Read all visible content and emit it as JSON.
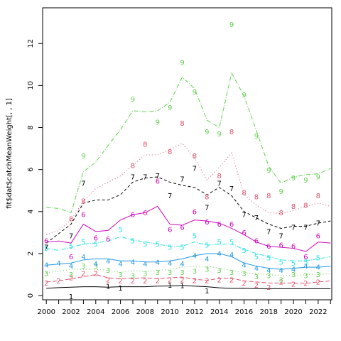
{
  "chart_data": {
    "type": "line",
    "ylabel": "fit$dat$catchMeanWeight[, , 1]",
    "xlabel": "",
    "xlim": [
      1999.7,
      2023.1
    ],
    "ylim": [
      -0.2,
      13.7
    ],
    "x_ticks": [
      2000,
      2002,
      2004,
      2006,
      2008,
      2010,
      2012,
      2014,
      2016,
      2018,
      2020,
      2022
    ],
    "x_minor_ticks": [
      2001,
      2003,
      2005,
      2007,
      2009,
      2011,
      2013,
      2015,
      2017,
      2019,
      2021,
      2023
    ],
    "y_ticks": [
      0,
      2,
      4,
      6,
      8,
      10,
      12
    ],
    "fit_x": [
      2000,
      2001,
      2002,
      2003,
      2004,
      2005,
      2006,
      2007,
      2008,
      2009,
      2010,
      2011,
      2012,
      2013,
      2014,
      2015,
      2016,
      2017,
      2018,
      2019,
      2020,
      2021,
      2022,
      2023
    ],
    "series": [
      {
        "label": "1",
        "color": "#000000",
        "dash": "",
        "fit": [
          0.35,
          0.38,
          0.4,
          0.42,
          0.42,
          0.4,
          0.42,
          0.42,
          0.42,
          0.45,
          0.46,
          0.48,
          0.45,
          0.42,
          0.37,
          0.34,
          0.35,
          0.33,
          0.33,
          0.33,
          0.33,
          0.33,
          0.33,
          0.33
        ],
        "obs_x": [
          2002,
          2005,
          2006,
          2010,
          2011,
          2013
        ],
        "obs_y": [
          -0.05,
          0.45,
          0.35,
          0.5,
          0.48,
          0.22
        ]
      },
      {
        "label": "2",
        "color": "#DF536B",
        "dash": "6,3",
        "fit": [
          0.65,
          0.7,
          0.8,
          0.9,
          1.0,
          0.85,
          0.8,
          0.82,
          0.85,
          0.8,
          0.85,
          0.88,
          0.78,
          0.72,
          0.82,
          0.82,
          0.7,
          0.65,
          0.6,
          0.6,
          0.6,
          0.58,
          0.65,
          0.7
        ],
        "obs_x": [
          2000,
          2001,
          2002,
          2003,
          2004,
          2005,
          2006,
          2007,
          2008,
          2009,
          2010,
          2011,
          2012,
          2013,
          2014,
          2015,
          2016,
          2017,
          2018,
          2019,
          2020,
          2021,
          2022
        ],
        "obs_y": [
          0.6,
          0.7,
          0.85,
          1.05,
          1.05,
          0.75,
          0.7,
          0.7,
          0.7,
          0.72,
          0.75,
          0.75,
          0.72,
          0.72,
          0.75,
          0.75,
          0.6,
          0.5,
          0.4,
          0.65,
          0.55,
          0.6,
          0.65
        ]
      },
      {
        "label": "3",
        "color": "#61D04F",
        "dash": "1,3",
        "fit": [
          1.1,
          1.15,
          1.25,
          1.25,
          1.25,
          1.2,
          1.1,
          1.2,
          1.15,
          1.2,
          1.25,
          1.35,
          1.4,
          1.4,
          1.3,
          1.2,
          1.1,
          1.05,
          1.0,
          0.95,
          0.95,
          1.0,
          1.0,
          1.05
        ],
        "obs_x": [
          2000,
          2002,
          2003,
          2004,
          2005,
          2006,
          2007,
          2008,
          2009,
          2010,
          2011,
          2012,
          2013,
          2014,
          2015,
          2016,
          2017,
          2018,
          2019,
          2020,
          2021,
          2022
        ],
        "obs_y": [
          1.05,
          1.0,
          1.4,
          1.4,
          1.2,
          1.0,
          0.95,
          1.05,
          1.1,
          1.1,
          1.1,
          1.15,
          1.25,
          1.2,
          1.1,
          1.05,
          0.9,
          0.95,
          0.75,
          1.0,
          0.95,
          1.0
        ]
      },
      {
        "label": "4",
        "color": "#2297E6",
        "dash": "",
        "fit": [
          1.45,
          1.5,
          1.55,
          1.7,
          1.75,
          1.75,
          1.65,
          1.65,
          1.6,
          1.6,
          1.65,
          1.75,
          1.9,
          2.0,
          2.0,
          1.85,
          1.55,
          1.4,
          1.3,
          1.25,
          1.3,
          1.35,
          1.35,
          1.4
        ],
        "obs_x": [
          2000,
          2001,
          2002,
          2003,
          2004,
          2005,
          2006,
          2007,
          2008,
          2009,
          2010,
          2011,
          2012,
          2013,
          2014,
          2015,
          2016,
          2017,
          2018,
          2019,
          2020,
          2021,
          2022
        ],
        "obs_y": [
          1.45,
          1.55,
          1.4,
          1.85,
          1.5,
          1.65,
          1.5,
          1.6,
          1.5,
          1.6,
          1.55,
          1.5,
          1.9,
          1.75,
          2.0,
          1.95,
          1.45,
          1.3,
          1.2,
          1.2,
          1.25,
          1.4,
          1.35
        ]
      },
      {
        "label": "5",
        "color": "#28E2E5",
        "dash": "6,2,1,2",
        "fit": [
          2.25,
          2.15,
          2.3,
          2.45,
          2.5,
          2.6,
          2.8,
          2.65,
          2.55,
          2.45,
          2.35,
          2.35,
          2.55,
          2.4,
          2.45,
          2.45,
          2.2,
          2.0,
          1.85,
          1.7,
          1.65,
          1.65,
          1.75,
          1.85
        ],
        "obs_x": [
          2000,
          2002,
          2003,
          2004,
          2006,
          2007,
          2008,
          2009,
          2010,
          2011,
          2012,
          2013,
          2014,
          2015,
          2016,
          2017,
          2018,
          2019,
          2020,
          2021,
          2022
        ],
        "obs_y": [
          2.25,
          2.35,
          2.55,
          2.45,
          3.15,
          2.6,
          2.45,
          2.45,
          2.3,
          2.3,
          2.85,
          2.4,
          2.55,
          2.55,
          2.15,
          1.85,
          1.8,
          1.6,
          1.55,
          1.6,
          1.8
        ]
      },
      {
        "label": "6",
        "color": "#CD0BBC",
        "dash": "",
        "fit": [
          2.55,
          2.6,
          2.5,
          3.4,
          3.05,
          3.1,
          3.6,
          3.85,
          3.95,
          4.25,
          3.4,
          3.35,
          3.6,
          3.55,
          3.45,
          3.2,
          2.9,
          2.55,
          2.35,
          2.3,
          2.25,
          2.1,
          2.55,
          2.5
        ],
        "obs_x": [
          2000,
          2002,
          2003,
          2004,
          2005,
          2007,
          2008,
          2009,
          2010,
          2011,
          2012,
          2013,
          2014,
          2015,
          2016,
          2017,
          2018,
          2019,
          2020,
          2021,
          2022
        ],
        "obs_y": [
          2.6,
          1.85,
          3.85,
          2.75,
          2.7,
          3.85,
          3.95,
          5.45,
          3.15,
          3.25,
          4.0,
          3.5,
          3.4,
          3.4,
          3.0,
          2.6,
          2.35,
          2.4,
          2.35,
          1.85,
          2.85
        ]
      },
      {
        "label": "7",
        "color": "#000000",
        "dash": "4,3",
        "fit": [
          2.5,
          2.95,
          3.4,
          4.4,
          4.55,
          4.55,
          4.8,
          5.4,
          5.6,
          5.65,
          5.4,
          5.25,
          5.15,
          4.8,
          5.15,
          4.75,
          4.0,
          3.7,
          3.4,
          3.2,
          3.3,
          3.3,
          3.45,
          3.55
        ],
        "obs_x": [
          2000,
          2002,
          2003,
          2007,
          2008,
          2009,
          2010,
          2011,
          2012,
          2013,
          2014,
          2015,
          2016,
          2017,
          2018,
          2019,
          2020,
          2021,
          2022
        ],
        "obs_y": [
          2.3,
          2.85,
          5.35,
          5.65,
          5.65,
          5.7,
          4.75,
          5.55,
          6.05,
          4.2,
          5.35,
          5.1,
          3.85,
          3.7,
          3.05,
          2.85,
          3.25,
          3.25,
          3.45
        ]
      },
      {
        "label": "8",
        "color": "#DF536B",
        "dash": "1,3",
        "fit": [
          2.9,
          3.1,
          3.6,
          4.5,
          5.1,
          5.4,
          5.7,
          6.2,
          6.7,
          6.7,
          6.95,
          7.25,
          6.55,
          5.5,
          6.1,
          6.8,
          4.8,
          4.3,
          3.95,
          3.9,
          4.05,
          4.25,
          4.4,
          4.25
        ],
        "obs_x": [
          2002,
          2003,
          2007,
          2008,
          2010,
          2011,
          2012,
          2013,
          2014,
          2015,
          2016,
          2017,
          2018,
          2019,
          2020,
          2021,
          2022
        ],
        "obs_y": [
          3.65,
          4.5,
          6.2,
          7.2,
          6.85,
          8.2,
          6.65,
          4.7,
          5.7,
          7.8,
          4.9,
          4.7,
          4.75,
          3.95,
          4.25,
          4.3,
          4.75
        ]
      },
      {
        "label": "9",
        "color": "#61D04F",
        "dash": "6,2,1,2",
        "fit": [
          4.2,
          4.15,
          3.95,
          5.9,
          6.35,
          7.15,
          7.9,
          8.8,
          8.75,
          8.8,
          9.2,
          10.4,
          9.85,
          8.35,
          8.0,
          10.6,
          9.5,
          7.85,
          6.15,
          5.35,
          5.65,
          5.75,
          5.8,
          6.05
        ],
        "obs_x": [
          2003,
          2007,
          2009,
          2010,
          2011,
          2012,
          2013,
          2014,
          2015,
          2016,
          2017,
          2018,
          2019,
          2020,
          2021,
          2022
        ],
        "obs_y": [
          6.65,
          9.35,
          8.25,
          8.95,
          11.1,
          9.7,
          7.8,
          7.7,
          12.9,
          9.55,
          7.6,
          5.95,
          4.95,
          5.6,
          5.5,
          5.65
        ]
      }
    ]
  }
}
